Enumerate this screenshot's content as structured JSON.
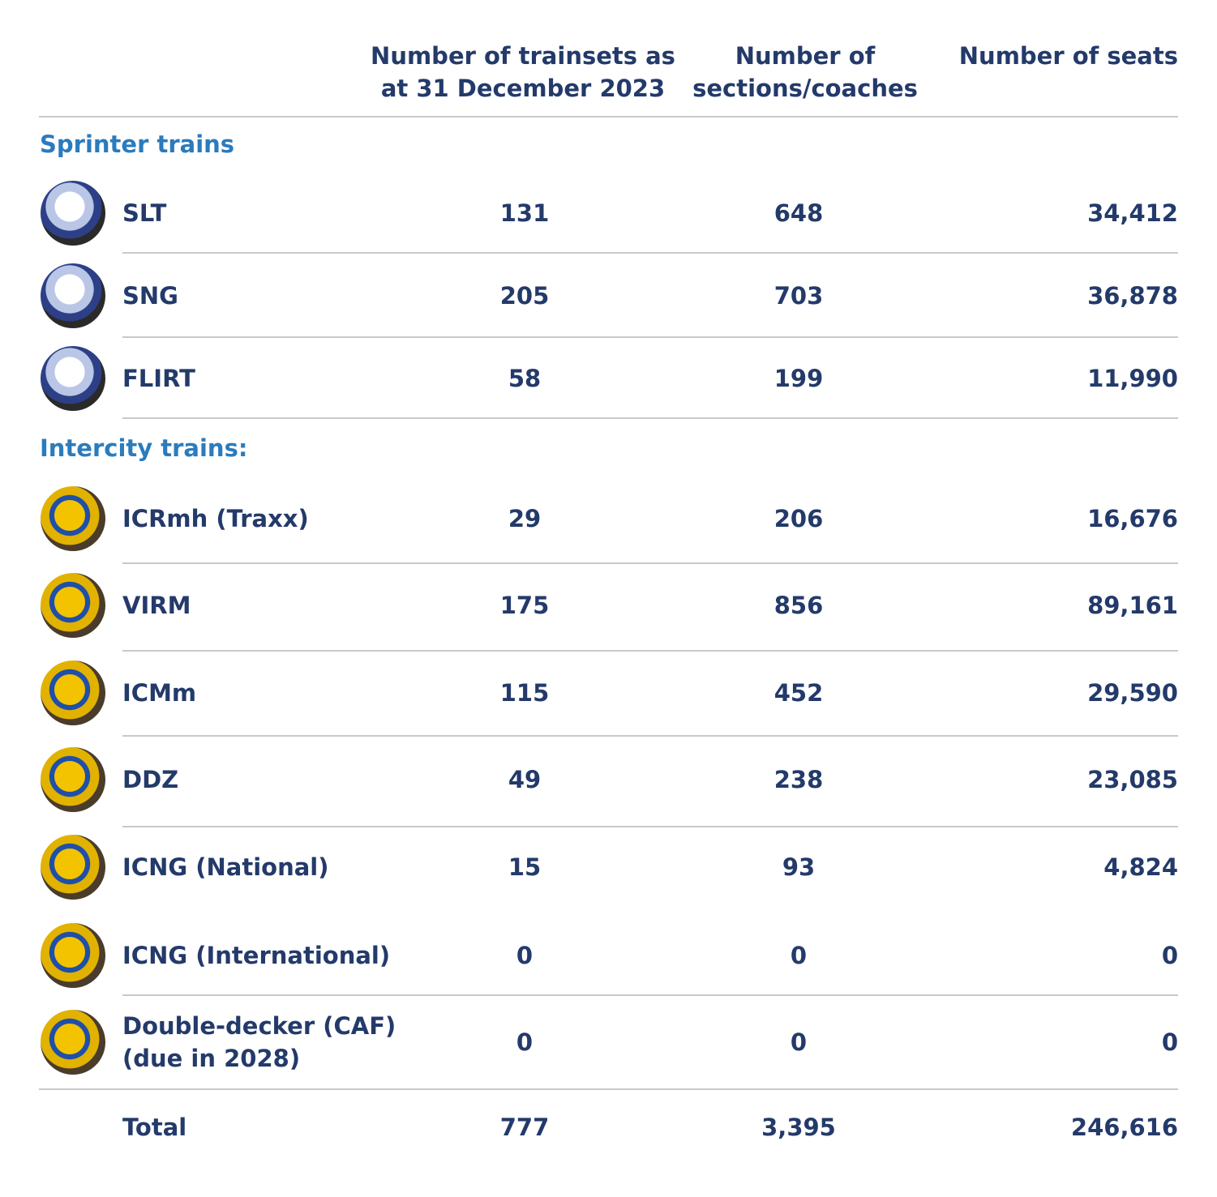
{
  "header": {
    "columns": [
      "Number of trainsets as at 31 December 2023",
      "Number of sections/coaches",
      "Number of seats"
    ]
  },
  "groups": [
    {
      "title": "Sprinter trains",
      "rows": [
        {
          "name": "SLT",
          "trainsets": "131",
          "sections": "648",
          "seats": "34,412"
        },
        {
          "name": "SNG",
          "trainsets": "205",
          "sections": "703",
          "seats": "36,878"
        },
        {
          "name": "FLIRT",
          "trainsets": "58",
          "sections": "199",
          "seats": "11,990"
        }
      ]
    },
    {
      "title": "Intercity trains:",
      "rows": [
        {
          "name": "ICRmh (Traxx)",
          "trainsets": "29",
          "sections": "206",
          "seats": "16,676"
        },
        {
          "name": "VIRM",
          "trainsets": "175",
          "sections": "856",
          "seats": "89,161"
        },
        {
          "name": "ICMm",
          "trainsets": "115",
          "sections": "452",
          "seats": "29,590"
        },
        {
          "name": "DDZ",
          "trainsets": "49",
          "sections": "238",
          "seats": "23,085"
        },
        {
          "name": "ICNG (National)",
          "trainsets": "15",
          "sections": "93",
          "seats": "4,824"
        },
        {
          "name": "ICNG (International)",
          "trainsets": "0",
          "sections": "0",
          "seats": "0"
        },
        {
          "name": "Double-decker (CAF) (due in 2028)",
          "trainsets": "0",
          "sections": "0",
          "seats": "0"
        }
      ]
    }
  ],
  "total": {
    "label": "Total",
    "trainsets": "777",
    "sections": "3,395",
    "seats": "246,616"
  }
}
